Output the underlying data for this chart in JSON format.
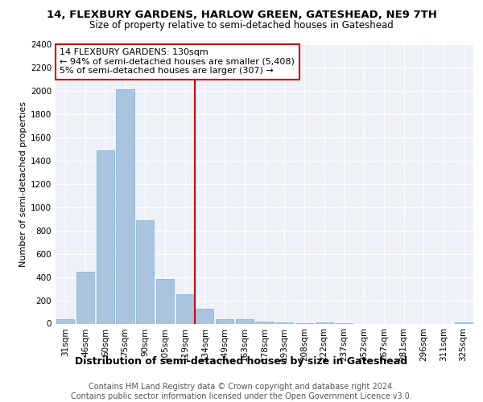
{
  "title1": "14, FLEXBURY GARDENS, HARLOW GREEN, GATESHEAD, NE9 7TH",
  "title2": "Size of property relative to semi-detached houses in Gateshead",
  "xlabel": "Distribution of semi-detached houses by size in Gateshead",
  "ylabel": "Number of semi-detached properties",
  "categories": [
    "31sqm",
    "46sqm",
    "60sqm",
    "75sqm",
    "90sqm",
    "105sqm",
    "119sqm",
    "134sqm",
    "149sqm",
    "163sqm",
    "178sqm",
    "193sqm",
    "208sqm",
    "222sqm",
    "237sqm",
    "252sqm",
    "267sqm",
    "281sqm",
    "296sqm",
    "311sqm",
    "325sqm"
  ],
  "values": [
    35,
    445,
    1490,
    2010,
    890,
    380,
    255,
    130,
    40,
    40,
    20,
    10,
    5,
    10,
    5,
    0,
    0,
    0,
    0,
    0,
    10
  ],
  "bar_color": "#aac4e0",
  "bar_edge_color": "#7aaed0",
  "property_label": "14 FLEXBURY GARDENS: 130sqm",
  "annotation_smaller": "← 94% of semi-detached houses are smaller (5,408)",
  "annotation_larger": "5% of semi-detached houses are larger (307) →",
  "vline_color": "#cc0000",
  "vline_index": 6.5,
  "annotation_box_color": "#ffffff",
  "annotation_box_edge": "#cc0000",
  "ylim": [
    0,
    2400
  ],
  "yticks": [
    0,
    200,
    400,
    600,
    800,
    1000,
    1200,
    1400,
    1600,
    1800,
    2000,
    2200,
    2400
  ],
  "footer1": "Contains HM Land Registry data © Crown copyright and database right 2024.",
  "footer2": "Contains public sector information licensed under the Open Government Licence v3.0.",
  "bg_color": "#eef2f8",
  "fig_bg_color": "#ffffff",
  "title1_fontsize": 9.5,
  "title2_fontsize": 8.5,
  "xlabel_fontsize": 9,
  "ylabel_fontsize": 8,
  "tick_fontsize": 7.5,
  "footer_fontsize": 7,
  "annot_fontsize": 8
}
